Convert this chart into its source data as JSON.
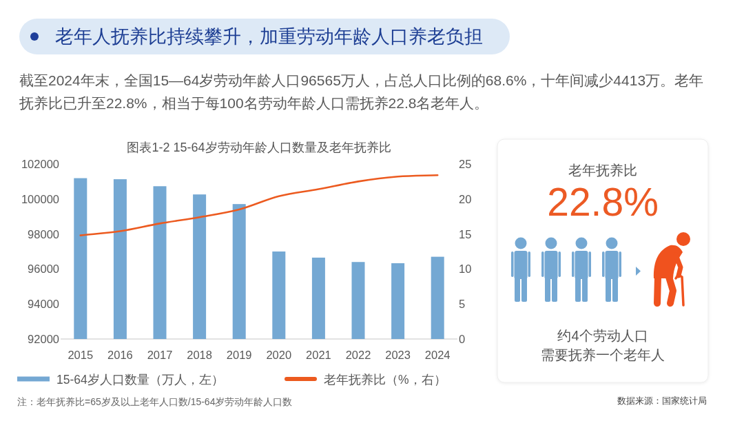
{
  "chart_data": [
    {
      "type": "other",
      "title": "老年人抚养比持续攀升，加重劳动年龄人口养老负担",
      "subtitle": "截至2024年末，全国15—64岁劳动年龄人口96565万人，占总人口比例的68.6%，十年间减少4413万。老年抚养比已升至22.8%，相当于每100名劳动年龄人口需抚养22.8名老年人。"
    },
    {
      "type": "bar",
      "title": "图表1-2 15-64岁劳动年龄人口数量及老年抚养比",
      "categories": [
        "2015",
        "2016",
        "2017",
        "2018",
        "2019",
        "2020",
        "2021",
        "2022",
        "2023",
        "2024"
      ],
      "series": [
        {
          "name": "15-64岁人口数量（万人，左）",
          "color": "#74a8d3",
          "values": [
            101190,
            101130,
            100730,
            100260,
            99710,
            97000,
            96650,
            96400,
            96330,
            96700
          ]
        },
        {
          "name": "老年抚养比（%，右）",
          "type": "line",
          "axis": "y2",
          "color": "#ec5a1f",
          "values": [
            14.8,
            15.4,
            16.5,
            17.4,
            18.5,
            20.4,
            21.4,
            22.5,
            23.2,
            23.4
          ]
        }
      ],
      "ylim": [
        92000,
        102000
      ],
      "yticks": [
        92000,
        94000,
        96000,
        98000,
        100000,
        102000
      ],
      "y2lim": [
        0,
        25
      ],
      "y2ticks": [
        0,
        5,
        10,
        15,
        20,
        25
      ],
      "legend": "bottom",
      "annotations": [
        "注：老年抚养比=65岁及以上老年人口数/15-64岁劳动年龄人口数"
      ]
    },
    {
      "type": "other",
      "title": "老年抚养比",
      "annotations": [
        "22.8%",
        "约4个劳动人口",
        "需要抚养一个老年人",
        "数据来源：国家统计局"
      ]
    }
  ]
}
